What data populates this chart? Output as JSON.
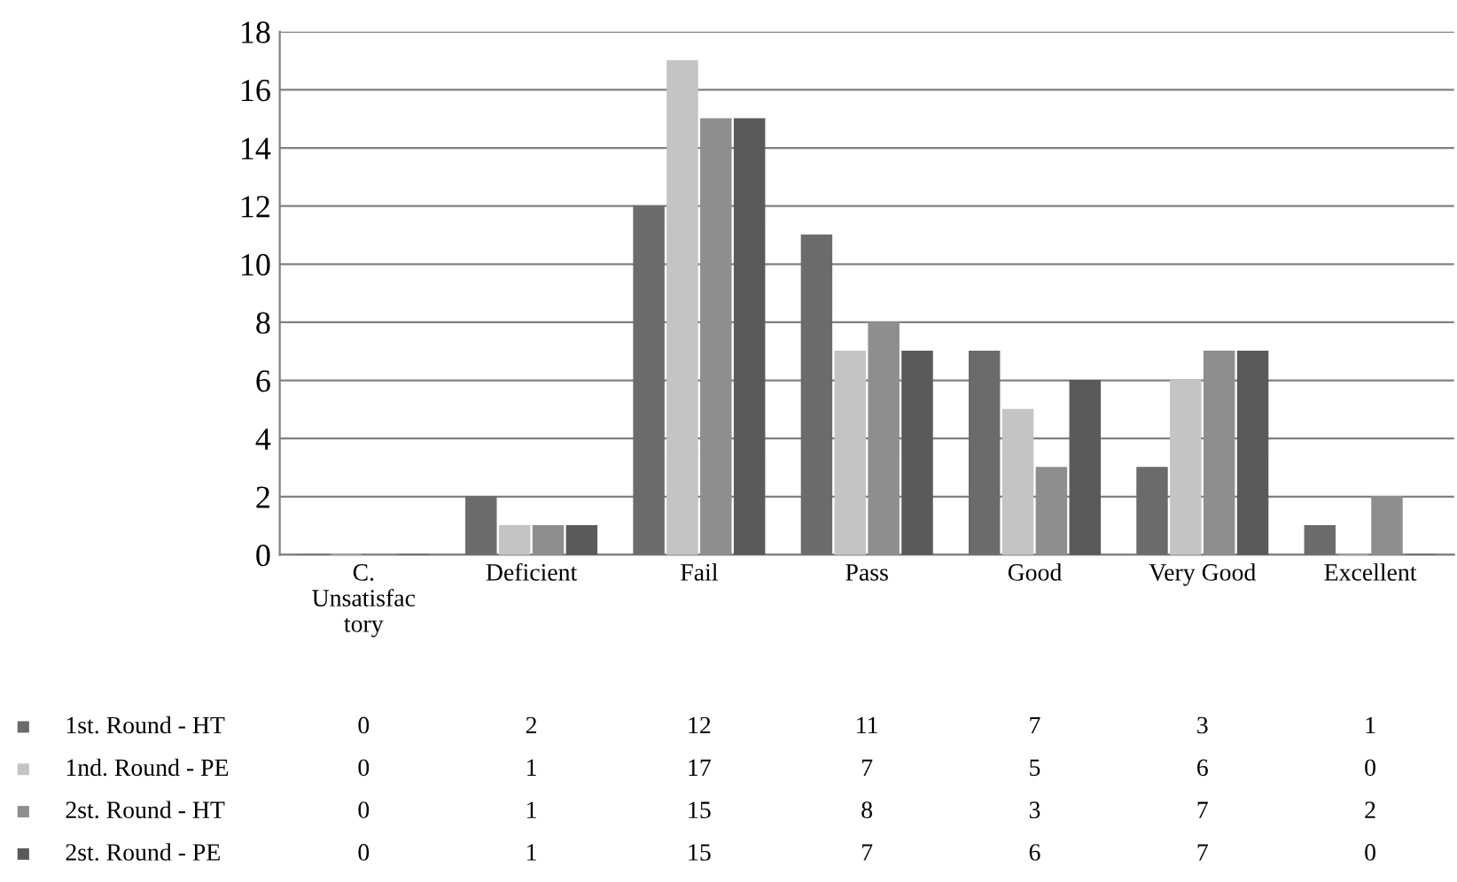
{
  "chart_data": {
    "type": "bar",
    "categories": [
      "C.\nUnsatisfac\ntory",
      "Deficient",
      "Fail",
      "Pass",
      "Good",
      "Very Good",
      "Excellent"
    ],
    "series": [
      {
        "name": "1st. Round - HT",
        "color": "#6b6b6b",
        "values": [
          0,
          2,
          12,
          11,
          7,
          3,
          1
        ]
      },
      {
        "name": "1nd. Round - PE",
        "color": "#c4c4c4",
        "values": [
          0,
          1,
          17,
          7,
          5,
          6,
          0
        ]
      },
      {
        "name": "2st. Round - HT",
        "color": "#8e8e8e",
        "values": [
          0,
          1,
          15,
          8,
          3,
          7,
          2
        ]
      },
      {
        "name": "2st. Round - PE",
        "color": "#5a5a5a",
        "values": [
          0,
          1,
          15,
          7,
          6,
          7,
          0
        ]
      }
    ],
    "ylim": [
      0,
      18
    ],
    "yticks": [
      0,
      2,
      4,
      6,
      8,
      10,
      12,
      14,
      16,
      18
    ],
    "grid": "y",
    "legend": "bottom left",
    "data_labels": true
  }
}
